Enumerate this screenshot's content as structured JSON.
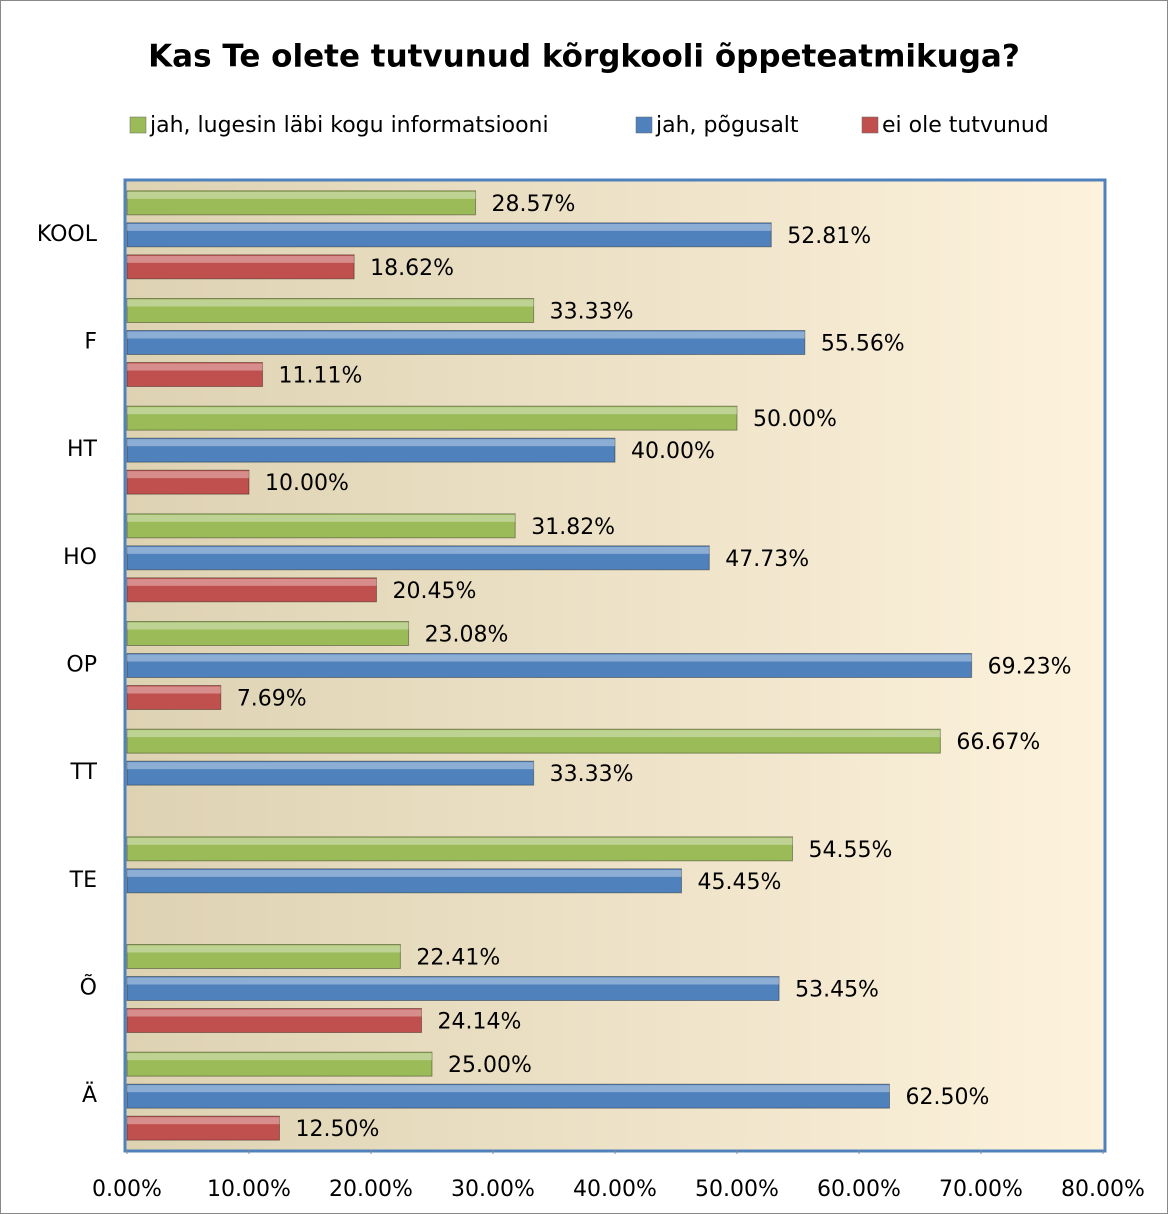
{
  "chart_data": {
    "type": "barh",
    "title": "Kas Te olete tutvunud kõrgkooli õppeteatmikuga?",
    "categories": [
      "KOOL",
      "F",
      "HT",
      "HO",
      "OP",
      "TT",
      "TE",
      "Õ",
      "Ä"
    ],
    "series": [
      {
        "name": "jah, lugesin läbi kogu informatsiooni",
        "color": "#9bbb59",
        "values": [
          28.57,
          33.33,
          50.0,
          31.82,
          23.08,
          66.67,
          54.55,
          22.41,
          25.0
        ],
        "value_labels": [
          "28.57%",
          "33.33%",
          "50.00%",
          "31.82%",
          "23.08%",
          "66.67%",
          "54.55%",
          "22.41%",
          "25.00%"
        ]
      },
      {
        "name": "jah, põgusalt",
        "color": "#4f81bd",
        "values": [
          52.81,
          55.56,
          40.0,
          47.73,
          69.23,
          33.33,
          45.45,
          53.45,
          62.5
        ],
        "value_labels": [
          "52.81%",
          "55.56%",
          "40.00%",
          "47.73%",
          "69.23%",
          "33.33%",
          "45.45%",
          "53.45%",
          "62.50%"
        ]
      },
      {
        "name": "ei ole tutvunud",
        "color": "#c0504d",
        "values": [
          18.62,
          11.11,
          10.0,
          20.45,
          7.69,
          null,
          null,
          24.14,
          12.5
        ],
        "value_labels": [
          "18.62%",
          "11.11%",
          "10.00%",
          "20.45%",
          "7.69%",
          null,
          null,
          "24.14%",
          "12.50%"
        ]
      }
    ],
    "xlim": [
      0,
      80
    ],
    "xticks": [
      {
        "value": 0,
        "label": "0.00%"
      },
      {
        "value": 10,
        "label": "10.00%"
      },
      {
        "value": 20,
        "label": "20.00%"
      },
      {
        "value": 30,
        "label": "30.00%"
      },
      {
        "value": 40,
        "label": "40.00%"
      },
      {
        "value": 50,
        "label": "50.00%"
      },
      {
        "value": 60,
        "label": "60.00%"
      },
      {
        "value": 70,
        "label": "70.00%"
      },
      {
        "value": 80,
        "label": "80.00%"
      }
    ],
    "legend": "top"
  }
}
